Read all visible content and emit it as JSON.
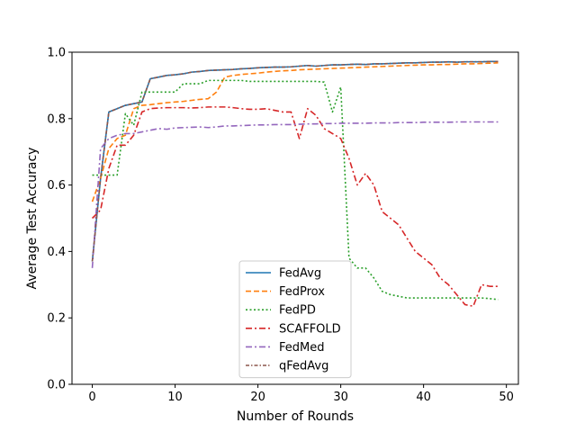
{
  "chart_data": {
    "type": "line",
    "title": "",
    "xlabel": "Number of Rounds",
    "ylabel": "Average Test Accuracy",
    "xlim": [
      -2.45,
      51.45
    ],
    "ylim": [
      0.0,
      1.0
    ],
    "xticks": [
      0,
      10,
      20,
      30,
      40,
      50
    ],
    "yticks": [
      0.0,
      0.2,
      0.4,
      0.6,
      0.8,
      1.0
    ],
    "xtick_labels": [
      "0",
      "10",
      "20",
      "30",
      "40",
      "50"
    ],
    "ytick_labels": [
      "0.0",
      "0.2",
      "0.4",
      "0.6",
      "0.8",
      "1.0"
    ],
    "grid": false,
    "legend_position": "lower-center",
    "x": [
      0,
      1,
      2,
      3,
      4,
      5,
      6,
      7,
      8,
      9,
      10,
      11,
      12,
      13,
      14,
      15,
      16,
      17,
      18,
      19,
      20,
      21,
      22,
      23,
      24,
      25,
      26,
      27,
      28,
      29,
      30,
      31,
      32,
      33,
      34,
      35,
      36,
      37,
      38,
      39,
      40,
      41,
      42,
      43,
      44,
      45,
      46,
      47,
      48,
      49
    ],
    "series": [
      {
        "name": "FedAvg",
        "color": "#1f77b4",
        "dash": "solid",
        "values": [
          0.37,
          0.62,
          0.82,
          0.83,
          0.84,
          0.845,
          0.85,
          0.92,
          0.925,
          0.93,
          0.932,
          0.935,
          0.94,
          0.942,
          0.945,
          0.946,
          0.947,
          0.948,
          0.95,
          0.951,
          0.953,
          0.954,
          0.955,
          0.955,
          0.956,
          0.958,
          0.96,
          0.958,
          0.96,
          0.962,
          0.962,
          0.963,
          0.964,
          0.963,
          0.965,
          0.965,
          0.966,
          0.967,
          0.968,
          0.968,
          0.969,
          0.97,
          0.97,
          0.971,
          0.97,
          0.971,
          0.971,
          0.971,
          0.972,
          0.972
        ]
      },
      {
        "name": "FedProx",
        "color": "#ff7f0e",
        "dash": "dashed",
        "values": [
          0.55,
          0.62,
          0.71,
          0.74,
          0.75,
          0.83,
          0.84,
          0.842,
          0.845,
          0.848,
          0.85,
          0.852,
          0.855,
          0.858,
          0.86,
          0.88,
          0.925,
          0.93,
          0.933,
          0.935,
          0.937,
          0.94,
          0.942,
          0.944,
          0.945,
          0.947,
          0.948,
          0.949,
          0.95,
          0.951,
          0.952,
          0.953,
          0.954,
          0.955,
          0.956,
          0.957,
          0.958,
          0.959,
          0.96,
          0.961,
          0.962,
          0.962,
          0.963,
          0.963,
          0.964,
          0.965,
          0.965,
          0.966,
          0.967,
          0.968
        ]
      },
      {
        "name": "FedPD",
        "color": "#2ca02c",
        "dash": "dotted",
        "values": [
          0.63,
          0.63,
          0.63,
          0.63,
          0.815,
          0.78,
          0.88,
          0.88,
          0.88,
          0.88,
          0.88,
          0.905,
          0.905,
          0.905,
          0.915,
          0.915,
          0.915,
          0.915,
          0.915,
          0.912,
          0.912,
          0.912,
          0.912,
          0.912,
          0.912,
          0.912,
          0.912,
          0.912,
          0.91,
          0.82,
          0.895,
          0.38,
          0.35,
          0.35,
          0.32,
          0.28,
          0.27,
          0.265,
          0.26,
          0.26,
          0.26,
          0.26,
          0.26,
          0.26,
          0.26,
          0.26,
          0.26,
          0.26,
          0.258,
          0.255
        ]
      },
      {
        "name": "SCAFFOLD",
        "color": "#d62728",
        "dash": "dashdot",
        "values": [
          0.5,
          0.525,
          0.65,
          0.72,
          0.72,
          0.75,
          0.82,
          0.83,
          0.832,
          0.833,
          0.833,
          0.833,
          0.832,
          0.833,
          0.835,
          0.835,
          0.835,
          0.833,
          0.83,
          0.828,
          0.828,
          0.83,
          0.825,
          0.82,
          0.82,
          0.74,
          0.83,
          0.81,
          0.77,
          0.755,
          0.74,
          0.68,
          0.6,
          0.635,
          0.6,
          0.52,
          0.5,
          0.48,
          0.44,
          0.4,
          0.38,
          0.36,
          0.32,
          0.3,
          0.27,
          0.24,
          0.235,
          0.3,
          0.295,
          0.295
        ]
      },
      {
        "name": "FedMed",
        "color": "#9467bd",
        "dash": "dashdot",
        "values": [
          0.35,
          0.71,
          0.74,
          0.75,
          0.755,
          0.755,
          0.76,
          0.765,
          0.77,
          0.768,
          0.772,
          0.773,
          0.774,
          0.775,
          0.773,
          0.775,
          0.778,
          0.778,
          0.779,
          0.78,
          0.781,
          0.781,
          0.782,
          0.782,
          0.782,
          0.783,
          0.784,
          0.784,
          0.785,
          0.785,
          0.786,
          0.786,
          0.786,
          0.786,
          0.787,
          0.787,
          0.787,
          0.788,
          0.788,
          0.788,
          0.789,
          0.789,
          0.789,
          0.789,
          0.79,
          0.79,
          0.79,
          0.79,
          0.79,
          0.79
        ]
      },
      {
        "name": "qFedAvg",
        "color": "#8c564b",
        "dash": "densedashdot",
        "values": [
          0.37,
          0.62,
          0.82,
          0.83,
          0.84,
          0.845,
          0.85,
          0.92,
          0.925,
          0.93,
          0.932,
          0.935,
          0.94,
          0.942,
          0.945,
          0.946,
          0.947,
          0.948,
          0.95,
          0.951,
          0.953,
          0.954,
          0.955,
          0.955,
          0.956,
          0.958,
          0.96,
          0.958,
          0.96,
          0.962,
          0.962,
          0.963,
          0.964,
          0.963,
          0.965,
          0.965,
          0.966,
          0.967,
          0.968,
          0.968,
          0.969,
          0.97,
          0.97,
          0.971,
          0.97,
          0.971,
          0.971,
          0.971,
          0.972,
          0.972
        ]
      }
    ]
  }
}
